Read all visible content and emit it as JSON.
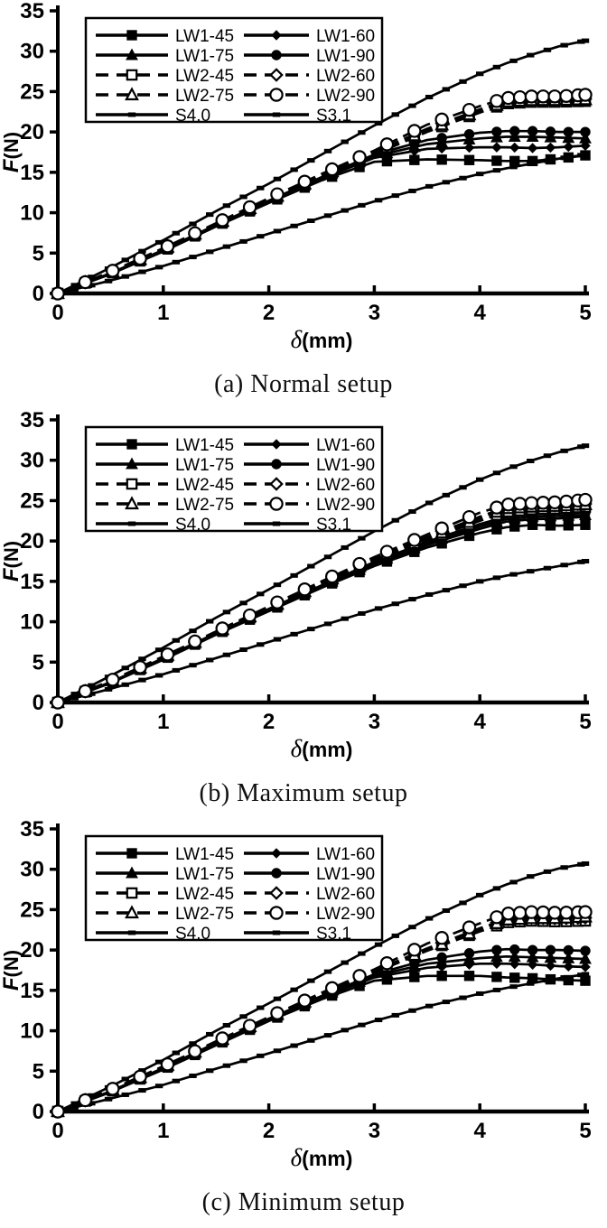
{
  "colors": {
    "stroke": "#000000",
    "background": "#ffffff"
  },
  "chart_data": [
    {
      "type": "line",
      "title": "(a) Normal setup",
      "xlabel": "δ(mm)",
      "ylabel": "F(N)",
      "xlim": [
        0,
        5
      ],
      "ylim": [
        0,
        35
      ],
      "x_ticks": [
        0,
        1,
        2,
        3,
        4,
        5
      ],
      "y_ticks": [
        0,
        5,
        10,
        15,
        20,
        25,
        30,
        35
      ],
      "grid": false,
      "legend_position": "top-left",
      "legend_columns": 2,
      "x": [
        0,
        0.5,
        1,
        1.5,
        2,
        2.5,
        3,
        3.5,
        4,
        4.25,
        4.5,
        4.75,
        5
      ],
      "series": [
        {
          "name": "LW1-45",
          "marker": "square",
          "marker_fill": "filled",
          "line": "solid",
          "values": [
            0,
            2.4,
            5.2,
            8.3,
            11.2,
            14.0,
            16.3,
            16.6,
            16.5,
            16.4,
            16.4,
            16.7,
            17.1
          ]
        },
        {
          "name": "LW1-60",
          "marker": "diamond",
          "marker_fill": "filled",
          "line": "solid",
          "values": [
            0,
            2.4,
            5.3,
            8.4,
            11.3,
            14.2,
            16.8,
            17.9,
            18.1,
            18.1,
            18.0,
            18.1,
            18.3
          ]
        },
        {
          "name": "LW1-75",
          "marker": "triangle",
          "marker_fill": "filled",
          "line": "solid",
          "values": [
            0,
            2.5,
            5.3,
            8.4,
            11.4,
            14.3,
            17.0,
            18.5,
            19.2,
            19.4,
            19.4,
            19.3,
            19.2
          ]
        },
        {
          "name": "LW1-90",
          "marker": "circle",
          "marker_fill": "filled",
          "line": "solid",
          "values": [
            0,
            2.5,
            5.4,
            8.5,
            11.5,
            14.4,
            17.2,
            19.0,
            19.9,
            20.1,
            20.1,
            20.0,
            20.0
          ]
        },
        {
          "name": "LW2-45",
          "marker": "square",
          "marker_fill": "open",
          "line": "dashed",
          "values": [
            0,
            2.5,
            5.4,
            8.5,
            11.5,
            14.4,
            17.2,
            20.0,
            22.4,
            23.5,
            23.7,
            23.7,
            23.8
          ]
        },
        {
          "name": "LW2-60",
          "marker": "diamond",
          "marker_fill": "open",
          "line": "dashed",
          "values": [
            0,
            2.6,
            5.5,
            8.6,
            11.6,
            14.6,
            17.5,
            20.4,
            22.8,
            23.9,
            24.0,
            24.0,
            24.1
          ]
        },
        {
          "name": "LW2-75",
          "marker": "triangle",
          "marker_fill": "open",
          "line": "dashed",
          "values": [
            0,
            2.6,
            5.5,
            8.6,
            11.6,
            14.5,
            17.4,
            20.2,
            22.6,
            23.7,
            23.9,
            23.9,
            24.0
          ]
        },
        {
          "name": "LW2-90",
          "marker": "circle",
          "marker_fill": "open",
          "line": "dashed",
          "values": [
            0,
            2.7,
            5.6,
            8.7,
            11.8,
            14.8,
            17.7,
            20.9,
            23.2,
            24.2,
            24.4,
            24.4,
            24.6
          ]
        },
        {
          "name": "S4.0",
          "marker": "small-square",
          "marker_fill": "filled",
          "line": "solid",
          "values": [
            0,
            3.2,
            6.6,
            10.2,
            13.6,
            17.2,
            20.8,
            24.2,
            27.2,
            28.5,
            29.6,
            30.6,
            31.3
          ]
        },
        {
          "name": "S3.1",
          "marker": "small-square",
          "marker_fill": "filled",
          "line": "solid",
          "values": [
            0,
            1.6,
            3.4,
            5.4,
            7.4,
            9.4,
            11.4,
            13.2,
            14.8,
            15.5,
            16.1,
            16.7,
            17.2
          ]
        }
      ]
    },
    {
      "type": "line",
      "title": "(b) Maximum setup",
      "xlabel": "δ(mm)",
      "ylabel": "F(N)",
      "xlim": [
        0,
        5
      ],
      "ylim": [
        0,
        35
      ],
      "x_ticks": [
        0,
        1,
        2,
        3,
        4,
        5
      ],
      "y_ticks": [
        0,
        5,
        10,
        15,
        20,
        25,
        30,
        35
      ],
      "grid": false,
      "legend_position": "top-left",
      "legend_columns": 2,
      "x": [
        0,
        0.5,
        1,
        1.5,
        2,
        2.5,
        3,
        3.5,
        4,
        4.25,
        4.5,
        4.75,
        5
      ],
      "series": [
        {
          "name": "LW1-45",
          "marker": "square",
          "marker_fill": "filled",
          "line": "solid",
          "values": [
            0,
            2.4,
            5.3,
            8.4,
            11.3,
            14.2,
            16.9,
            19.2,
            21.0,
            21.7,
            22.0,
            21.9,
            22.0
          ]
        },
        {
          "name": "LW1-60",
          "marker": "diamond",
          "marker_fill": "filled",
          "line": "solid",
          "values": [
            0,
            2.5,
            5.4,
            8.5,
            11.4,
            14.3,
            17.1,
            19.5,
            21.5,
            22.4,
            22.7,
            22.8,
            23.0
          ]
        },
        {
          "name": "LW1-75",
          "marker": "triangle",
          "marker_fill": "filled",
          "line": "solid",
          "values": [
            0,
            2.5,
            5.4,
            8.5,
            11.5,
            14.4,
            17.2,
            19.7,
            21.8,
            22.7,
            23.0,
            23.1,
            23.2
          ]
        },
        {
          "name": "LW1-90",
          "marker": "circle",
          "marker_fill": "filled",
          "line": "solid",
          "values": [
            0,
            2.5,
            5.5,
            8.6,
            11.6,
            14.5,
            17.4,
            19.9,
            22.1,
            23.0,
            23.3,
            23.4,
            23.5
          ]
        },
        {
          "name": "LW2-45",
          "marker": "square",
          "marker_fill": "open",
          "line": "dashed",
          "values": [
            0,
            2.6,
            5.5,
            8.6,
            11.7,
            14.6,
            17.5,
            20.1,
            22.5,
            23.6,
            23.9,
            24.0,
            24.2
          ]
        },
        {
          "name": "LW2-60",
          "marker": "diamond",
          "marker_fill": "open",
          "line": "dashed",
          "values": [
            0,
            2.6,
            5.6,
            8.7,
            11.8,
            14.8,
            17.8,
            20.5,
            23.0,
            24.2,
            24.4,
            24.4,
            24.6
          ]
        },
        {
          "name": "LW2-75",
          "marker": "triangle",
          "marker_fill": "open",
          "line": "dashed",
          "values": [
            0,
            2.6,
            5.6,
            8.7,
            11.7,
            14.7,
            17.7,
            20.3,
            22.8,
            24.0,
            24.2,
            24.3,
            24.5
          ]
        },
        {
          "name": "LW2-90",
          "marker": "circle",
          "marker_fill": "open",
          "line": "dashed",
          "values": [
            0,
            2.7,
            5.7,
            8.8,
            11.9,
            15.0,
            18.0,
            20.8,
            23.5,
            24.5,
            24.7,
            24.8,
            25.1
          ]
        },
        {
          "name": "S4.0",
          "marker": "small-square",
          "marker_fill": "filled",
          "line": "solid",
          "values": [
            0,
            3.3,
            6.8,
            10.5,
            14.0,
            17.6,
            21.2,
            24.6,
            27.6,
            28.9,
            30.0,
            31.0,
            31.8
          ]
        },
        {
          "name": "S3.1",
          "marker": "small-square",
          "marker_fill": "filled",
          "line": "solid",
          "values": [
            0,
            1.7,
            3.5,
            5.5,
            7.5,
            9.5,
            11.5,
            13.3,
            15.0,
            15.7,
            16.3,
            16.9,
            17.5
          ]
        }
      ]
    },
    {
      "type": "line",
      "title": "(c) Minimum setup",
      "xlabel": "δ(mm)",
      "ylabel": "F(N)",
      "xlim": [
        0,
        5
      ],
      "ylim": [
        0,
        35
      ],
      "x_ticks": [
        0,
        1,
        2,
        3,
        4,
        5
      ],
      "y_ticks": [
        0,
        5,
        10,
        15,
        20,
        25,
        30,
        35
      ],
      "grid": false,
      "legend_position": "top-left",
      "legend_columns": 2,
      "x": [
        0,
        0.5,
        1,
        1.5,
        2,
        2.5,
        3,
        3.5,
        4,
        4.25,
        4.5,
        4.75,
        5
      ],
      "series": [
        {
          "name": "LW1-45",
          "marker": "square",
          "marker_fill": "filled",
          "line": "solid",
          "values": [
            0,
            2.4,
            5.2,
            8.2,
            11.2,
            13.9,
            16.2,
            16.8,
            16.8,
            16.6,
            16.5,
            16.3,
            16.2
          ]
        },
        {
          "name": "LW1-60",
          "marker": "diamond",
          "marker_fill": "filled",
          "line": "solid",
          "values": [
            0,
            2.4,
            5.3,
            8.3,
            11.3,
            14.1,
            16.6,
            17.8,
            18.3,
            18.3,
            18.2,
            18.0,
            17.9
          ]
        },
        {
          "name": "LW1-75",
          "marker": "triangle",
          "marker_fill": "filled",
          "line": "solid",
          "values": [
            0,
            2.5,
            5.3,
            8.4,
            11.4,
            14.2,
            16.8,
            18.3,
            19.0,
            19.2,
            19.1,
            19.0,
            18.9
          ]
        },
        {
          "name": "LW1-90",
          "marker": "circle",
          "marker_fill": "filled",
          "line": "solid",
          "values": [
            0,
            2.5,
            5.4,
            8.5,
            11.5,
            14.3,
            17.0,
            18.8,
            19.8,
            20.1,
            20.0,
            20.0,
            19.9
          ]
        },
        {
          "name": "LW2-45",
          "marker": "square",
          "marker_fill": "open",
          "line": "dashed",
          "values": [
            0,
            2.5,
            5.4,
            8.5,
            11.5,
            14.4,
            17.2,
            19.9,
            22.3,
            23.4,
            23.6,
            23.5,
            23.6
          ]
        },
        {
          "name": "LW2-60",
          "marker": "diamond",
          "marker_fill": "open",
          "line": "dashed",
          "values": [
            0,
            2.6,
            5.5,
            8.6,
            11.6,
            14.6,
            17.4,
            20.2,
            22.7,
            23.8,
            24.0,
            23.9,
            24.0
          ]
        },
        {
          "name": "LW2-75",
          "marker": "triangle",
          "marker_fill": "open",
          "line": "dashed",
          "values": [
            0,
            2.6,
            5.5,
            8.6,
            11.6,
            14.5,
            17.3,
            20.0,
            22.5,
            23.7,
            23.9,
            23.9,
            24.1
          ]
        },
        {
          "name": "LW2-90",
          "marker": "circle",
          "marker_fill": "open",
          "line": "dashed",
          "values": [
            0,
            2.7,
            5.6,
            8.7,
            11.7,
            14.7,
            17.6,
            20.8,
            23.3,
            24.5,
            24.7,
            24.6,
            24.7
          ]
        },
        {
          "name": "S4.0",
          "marker": "small-square",
          "marker_fill": "filled",
          "line": "solid",
          "values": [
            0,
            3.1,
            6.4,
            10.0,
            13.4,
            16.9,
            20.4,
            23.8,
            26.8,
            28.1,
            29.2,
            30.1,
            30.7
          ]
        },
        {
          "name": "S3.1",
          "marker": "small-square",
          "marker_fill": "filled",
          "line": "solid",
          "values": [
            0,
            1.6,
            3.3,
            5.3,
            7.2,
            9.2,
            11.2,
            13.0,
            14.6,
            15.3,
            15.9,
            16.5,
            17.0
          ]
        }
      ]
    }
  ]
}
